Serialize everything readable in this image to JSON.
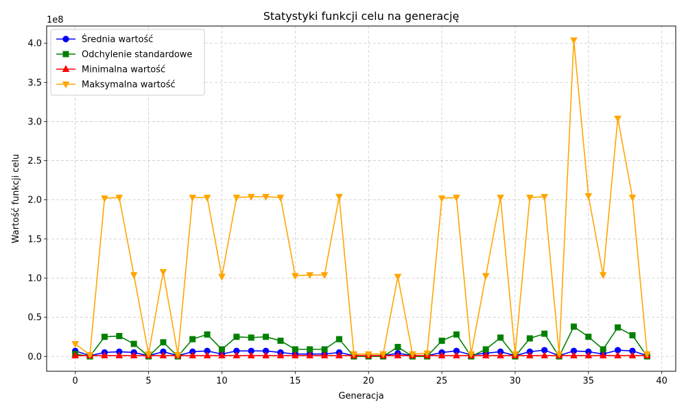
{
  "chart_data": {
    "type": "line",
    "title": "Statystyki funkcji celu na generację",
    "xlabel": "Generacja",
    "ylabel": "Wartość funkcji celu",
    "y_multiplier_label": "1e8",
    "y_scale_factor": 100000000,
    "xlim": [
      -1.95,
      40.95
    ],
    "ylim": [
      -0.19,
      4.22
    ],
    "x_ticks": [
      0,
      5,
      10,
      15,
      20,
      25,
      30,
      35,
      40
    ],
    "x_tick_labels": [
      "0",
      "5",
      "10",
      "15",
      "20",
      "25",
      "30",
      "35",
      "40"
    ],
    "y_ticks": [
      0.0,
      0.5,
      1.0,
      1.5,
      2.0,
      2.5,
      3.0,
      3.5,
      4.0
    ],
    "y_tick_labels": [
      "0.0",
      "0.5",
      "1.0",
      "1.5",
      "2.0",
      "2.5",
      "3.0",
      "3.5",
      "4.0"
    ],
    "grid": true,
    "legend_position": "top-left",
    "x": [
      0,
      1,
      2,
      3,
      4,
      5,
      6,
      7,
      8,
      9,
      10,
      11,
      12,
      13,
      14,
      15,
      16,
      17,
      18,
      19,
      20,
      21,
      22,
      23,
      24,
      25,
      26,
      27,
      28,
      29,
      30,
      31,
      32,
      33,
      34,
      35,
      36,
      37,
      38,
      39
    ],
    "series": [
      {
        "name": "Średnia wartość",
        "color": "#0000ff",
        "marker": "circle",
        "values": [
          0.07,
          0.01,
          0.05,
          0.06,
          0.05,
          0.01,
          0.06,
          0.01,
          0.06,
          0.07,
          0.03,
          0.07,
          0.07,
          0.07,
          0.05,
          0.03,
          0.03,
          0.03,
          0.05,
          0.01,
          0.01,
          0.01,
          0.04,
          0.01,
          0.01,
          0.05,
          0.07,
          0.02,
          0.04,
          0.06,
          0.01,
          0.06,
          0.08,
          0.01,
          0.07,
          0.06,
          0.03,
          0.08,
          0.07,
          0.01
        ]
      },
      {
        "name": "Odchylenie standardowe",
        "color": "#008000",
        "marker": "square",
        "values": [
          0.03,
          0.0,
          0.25,
          0.26,
          0.16,
          0.0,
          0.18,
          0.0,
          0.22,
          0.28,
          0.09,
          0.25,
          0.24,
          0.25,
          0.2,
          0.09,
          0.09,
          0.09,
          0.22,
          0.0,
          0.0,
          0.0,
          0.12,
          0.0,
          0.0,
          0.2,
          0.28,
          0.0,
          0.09,
          0.24,
          0.0,
          0.23,
          0.29,
          0.0,
          0.38,
          0.25,
          0.09,
          0.37,
          0.27,
          0.0
        ]
      },
      {
        "name": "Minimalna wartość",
        "color": "#ff0000",
        "marker": "triangle-up",
        "values": [
          0.01,
          0.01,
          0.01,
          0.01,
          0.01,
          0.01,
          0.01,
          0.01,
          0.01,
          0.01,
          0.01,
          0.01,
          0.01,
          0.01,
          0.01,
          0.01,
          0.01,
          0.01,
          0.01,
          0.01,
          0.01,
          0.01,
          0.01,
          0.01,
          0.01,
          0.01,
          0.01,
          0.01,
          0.01,
          0.01,
          0.01,
          0.01,
          0.01,
          0.01,
          0.01,
          0.01,
          0.01,
          0.01,
          0.01,
          0.01
        ]
      },
      {
        "name": "Maksymalna wartość",
        "color": "#ffa500",
        "marker": "triangle-down",
        "values": [
          0.16,
          0.02,
          2.02,
          2.03,
          1.04,
          0.03,
          1.08,
          0.02,
          2.03,
          2.03,
          1.02,
          2.03,
          2.04,
          2.04,
          2.03,
          1.03,
          1.04,
          1.04,
          2.04,
          0.03,
          0.03,
          0.03,
          1.02,
          0.03,
          0.04,
          2.02,
          2.03,
          0.03,
          1.03,
          2.03,
          0.03,
          2.03,
          2.04,
          0.03,
          4.04,
          2.05,
          1.04,
          3.04,
          2.03,
          0.03
        ]
      }
    ]
  }
}
